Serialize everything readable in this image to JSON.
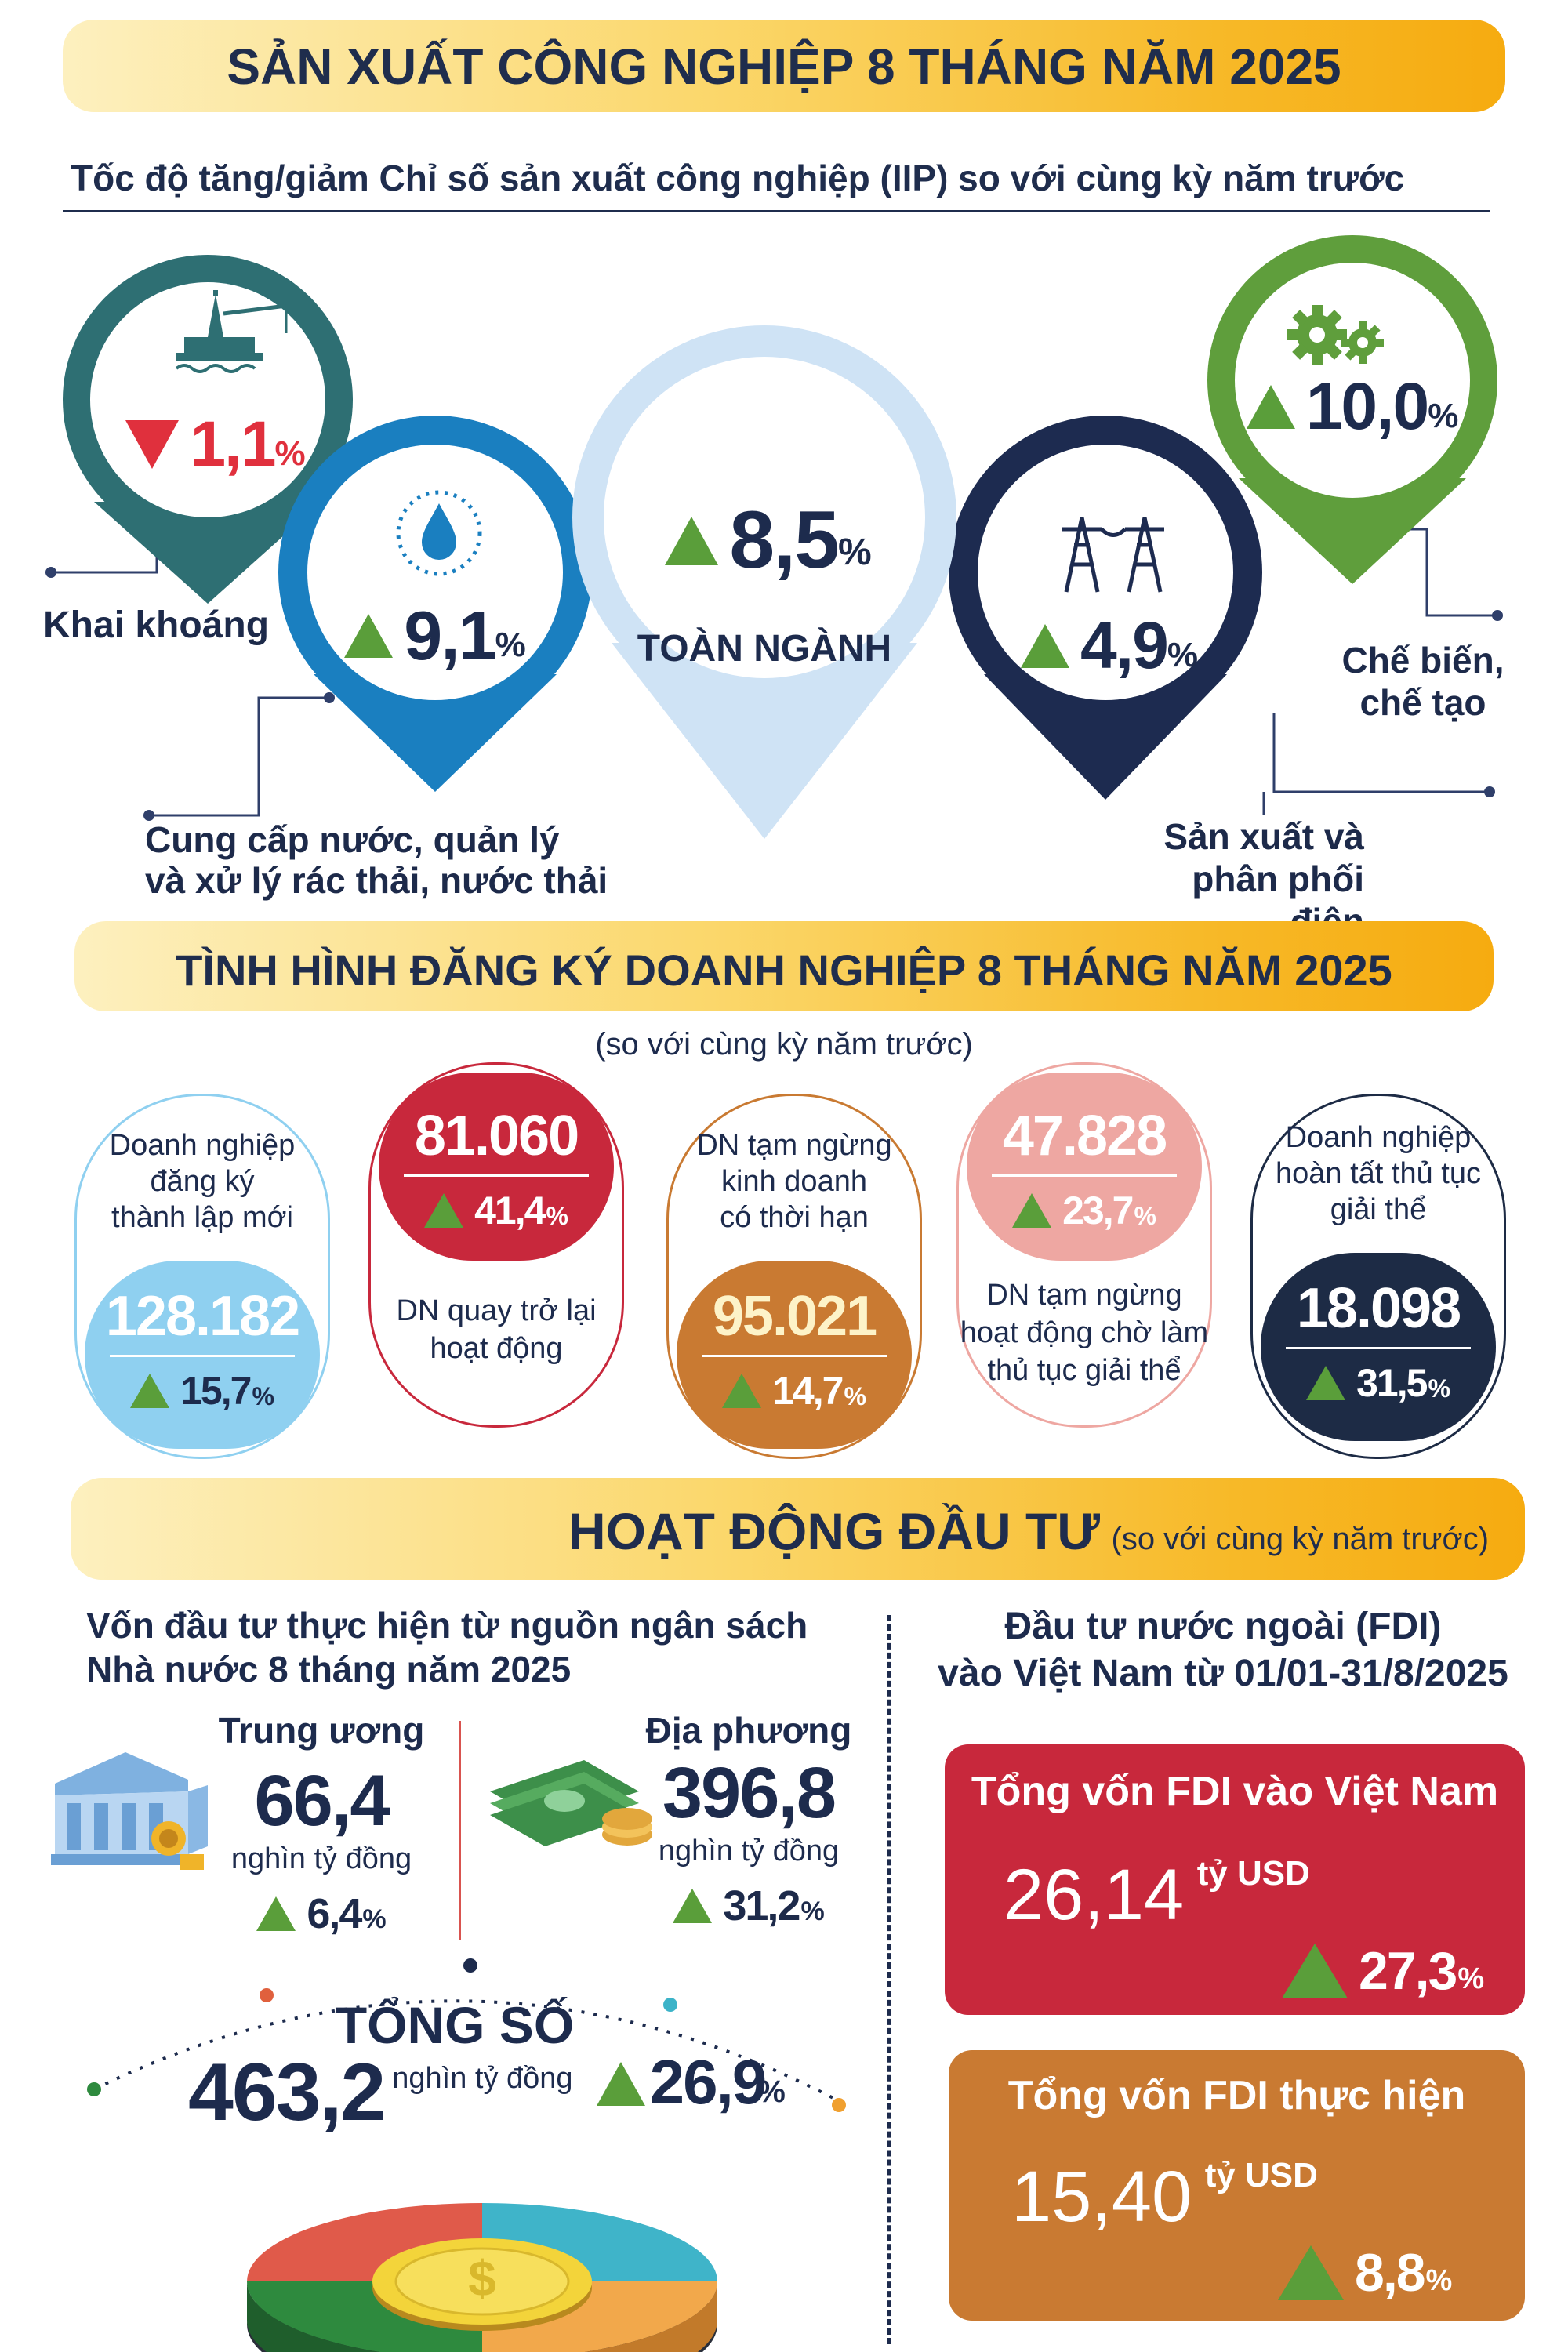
{
  "header": {
    "title": "SẢN XUẤT CÔNG NGHIỆP 8 THÁNG NĂM 2025",
    "subtitle": "Tốc độ tăng/giảm Chỉ số sản xuất công nghiệp (IIP) so với cùng kỳ năm trước"
  },
  "iip": {
    "mining": {
      "value": "1,1",
      "unit": "%",
      "label": "Khai khoáng",
      "direction": "down",
      "color": "#2e6f73",
      "icon": "oil-rig-icon"
    },
    "water": {
      "value": "9,1",
      "unit": "%",
      "label_line1": "Cung cấp nước, quản lý",
      "label_line2": "và xử lý rác thải, nước thải",
      "direction": "up",
      "color": "#1a7fc0",
      "icon": "water-drop-icon"
    },
    "total": {
      "value": "8,5",
      "unit": "%",
      "label": "TOÀN NGÀNH",
      "direction": "up",
      "color": "#cfe3f5"
    },
    "electricity": {
      "value": "4,9",
      "unit": "%",
      "label_line1": "Sản xuất và",
      "label_line2": "phân phối điện",
      "direction": "up",
      "color": "#1d2b50",
      "icon": "power-tower-icon"
    },
    "manufacturing": {
      "value": "10,0",
      "unit": "%",
      "label_line1": "Chế biến,",
      "label_line2": "chế tạo",
      "direction": "up",
      "color": "#5f9e3c",
      "icon": "gears-icon"
    }
  },
  "business": {
    "title": "TÌNH HÌNH ĐĂNG KÝ DOANH NGHIỆP 8 THÁNG  NĂM 2025",
    "note": "(so với cùng kỳ năm trước)",
    "new": {
      "label_line1": "Doanh nghiệp",
      "label_line2": "đăng ký",
      "label_line3": "thành lập mới",
      "value": "128.182",
      "change": "15,7",
      "unit": "%",
      "color": "#8fd0f0"
    },
    "returned": {
      "value": "81.060",
      "change": "41,4",
      "unit": "%",
      "label_line1": "DN quay trở lại",
      "label_line2": "hoạt động",
      "color": "#c8283c"
    },
    "suspended": {
      "label_line1": "DN tạm ngừng",
      "label_line2": "kinh doanh",
      "label_line3": "có thời hạn",
      "value": "95.021",
      "change": "14,7",
      "unit": "%",
      "color": "#c97a32"
    },
    "pending": {
      "value": "47.828",
      "change": "23,7",
      "unit": "%",
      "label_line1": "DN tạm ngừng",
      "label_line2": "hoạt động chờ làm",
      "label_line3": "thủ tục giải thể",
      "color": "#eea7a2"
    },
    "dissolved": {
      "label_line1": "Doanh nghiệp",
      "label_line2": "hoàn tất thủ tục",
      "label_line3": "giải thể",
      "value": "18.098",
      "change": "31,5",
      "unit": "%",
      "color": "#1d2b45"
    }
  },
  "investment": {
    "title": "HOẠT ĐỘNG ĐẦU TƯ",
    "note": "(so với cùng kỳ năm trước)",
    "budget_title_line1": "Vốn đầu tư thực hiện từ nguồn ngân sách",
    "budget_title_line2": "Nhà nước 8 tháng năm 2025",
    "central": {
      "label": "Trung ương",
      "value": "66,4",
      "unit": "nghìn tỷ đồng",
      "change": "6,4",
      "pct": "%"
    },
    "local": {
      "label": "Địa phương",
      "value": "396,8",
      "unit": "nghìn tỷ đồng",
      "change": "31,2",
      "pct": "%"
    },
    "total": {
      "label": "TỔNG SỐ",
      "value": "463,2",
      "unit": "nghìn tỷ đồng",
      "change": "26,9",
      "pct": "%"
    },
    "fdi_title_line1": "Đầu tư nước ngoài (FDI)",
    "fdi_title_line2": "vào Việt Nam từ 01/01-31/8/2025",
    "fdi_registered": {
      "label": "Tổng vốn FDI vào Việt Nam",
      "value": "26,14",
      "unit": "tỷ USD",
      "change": "27,3",
      "pct": "%",
      "color": "#c8283c"
    },
    "fdi_disbursed": {
      "label": "Tổng vốn FDI thực hiện",
      "value": "15,40",
      "unit": "tỷ USD",
      "change": "8,8",
      "pct": "%",
      "color": "#c97a32"
    }
  }
}
